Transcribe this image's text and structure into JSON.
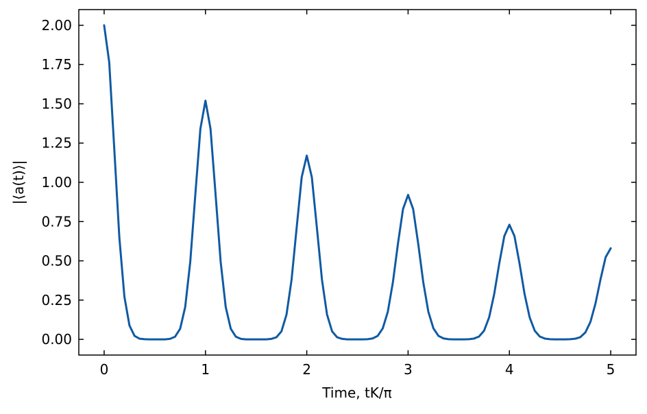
{
  "chart_data": {
    "type": "line",
    "xlabel": "Time, tK/π",
    "ylabel": "|⟨a(t)⟩|",
    "x": [
      0,
      0.05,
      0.1,
      0.15,
      0.2,
      0.25,
      0.3,
      0.35,
      0.4,
      0.45,
      0.5,
      0.55,
      0.6,
      0.65,
      0.7,
      0.75,
      0.8,
      0.85,
      0.9,
      0.95,
      1,
      1.05,
      1.1,
      1.15,
      1.2,
      1.25,
      1.3,
      1.35,
      1.4,
      1.45,
      1.5,
      1.55,
      1.6,
      1.65,
      1.7,
      1.75,
      1.8,
      1.85,
      1.9,
      1.95,
      2,
      2.05,
      2.1,
      2.15,
      2.2,
      2.25,
      2.3,
      2.35,
      2.4,
      2.45,
      2.5,
      2.55,
      2.6,
      2.65,
      2.7,
      2.75,
      2.8,
      2.85,
      2.9,
      2.95,
      3,
      3.05,
      3.1,
      3.15,
      3.2,
      3.25,
      3.3,
      3.35,
      3.4,
      3.45,
      3.5,
      3.55,
      3.6,
      3.65,
      3.7,
      3.75,
      3.8,
      3.85,
      3.9,
      3.95,
      4,
      4.05,
      4.1,
      4.15,
      4.2,
      4.25,
      4.3,
      4.35,
      4.4,
      4.45,
      4.5,
      4.55,
      4.6,
      4.65,
      4.7,
      4.75,
      4.8,
      4.85,
      4.9,
      4.95,
      5
    ],
    "series": [
      {
        "color": "#0f5aa3",
        "values": [
          2.0,
          1.765,
          1.213,
          0.649,
          0.271,
          0.088,
          0.022,
          0.004,
          0.001,
          0,
          0,
          0,
          0,
          0.003,
          0.017,
          0.067,
          0.206,
          0.494,
          0.922,
          1.341,
          1.52,
          1.341,
          0.922,
          0.494,
          0.206,
          0.067,
          0.017,
          0.003,
          0,
          0,
          0,
          0,
          0,
          0.003,
          0.013,
          0.051,
          0.158,
          0.38,
          0.71,
          1.033,
          1.17,
          1.033,
          0.71,
          0.38,
          0.158,
          0.051,
          0.013,
          0.003,
          0,
          0,
          0,
          0,
          0.001,
          0.006,
          0.022,
          0.07,
          0.176,
          0.363,
          0.609,
          0.83,
          0.92,
          0.83,
          0.609,
          0.363,
          0.176,
          0.07,
          0.022,
          0.006,
          0.001,
          0,
          0,
          0,
          0.001,
          0.005,
          0.018,
          0.055,
          0.14,
          0.288,
          0.483,
          0.658,
          0.73,
          0.658,
          0.483,
          0.288,
          0.14,
          0.055,
          0.018,
          0.005,
          0.001,
          0,
          0,
          0,
          0.001,
          0.004,
          0.014,
          0.044,
          0.111,
          0.229,
          0.384,
          0.523,
          0.58
        ]
      }
    ],
    "xlim": [
      -0.25,
      5.25
    ],
    "xticks": [
      0,
      1,
      2,
      3,
      4,
      5
    ],
    "ylim": [
      -0.1,
      2.1
    ],
    "yticks": [
      {
        "value": 0,
        "label": "0.00"
      },
      {
        "value": 0.25,
        "label": "0.25"
      },
      {
        "value": 0.5,
        "label": "0.50"
      },
      {
        "value": 0.75,
        "label": "0.75"
      },
      {
        "value": 1,
        "label": "1.00"
      },
      {
        "value": 1.25,
        "label": "1.25"
      },
      {
        "value": 1.5,
        "label": "1.50"
      },
      {
        "value": 1.75,
        "label": "1.75"
      },
      {
        "value": 2,
        "label": "2.00"
      }
    ]
  }
}
